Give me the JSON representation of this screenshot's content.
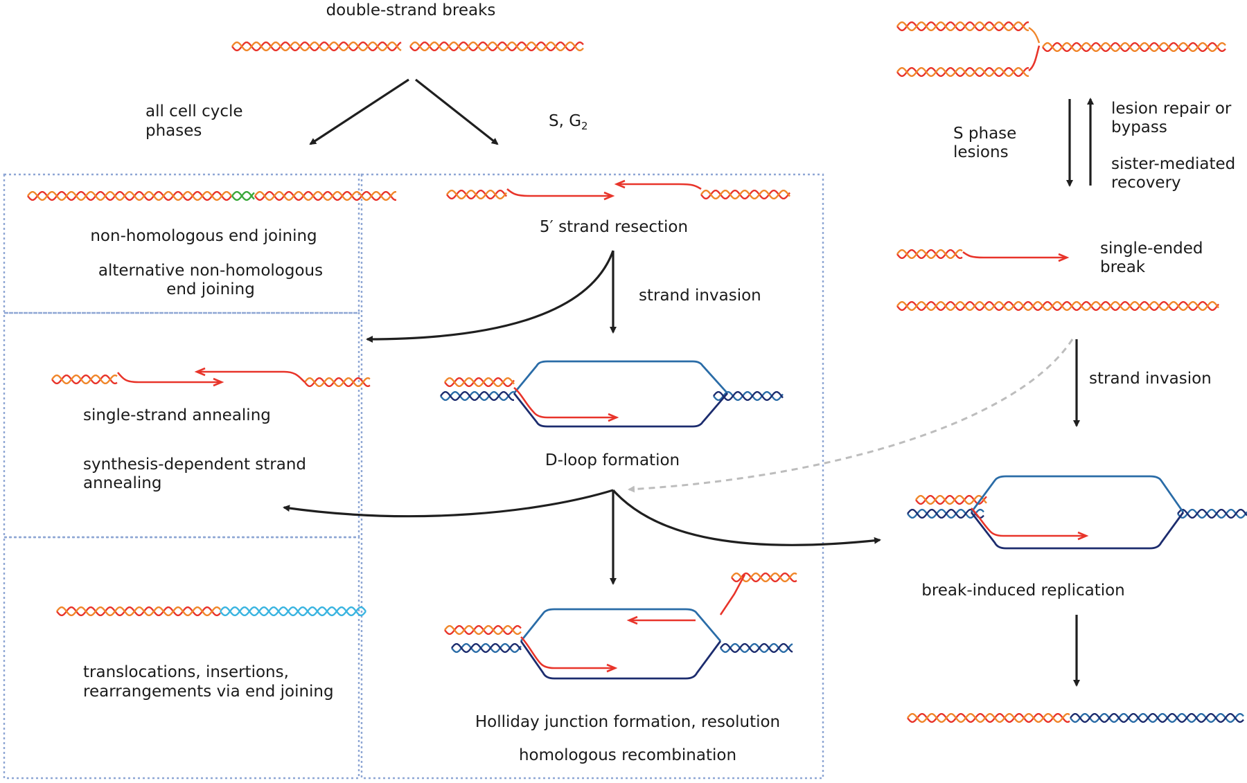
{
  "labels": {
    "double_strand_breaks": "double-strand breaks",
    "all_cell_cycle_1": "all cell cycle",
    "all_cell_cycle_2": "phases",
    "s_g2": "S, G",
    "s_g2_sub": "2",
    "nhej": "non-homologous end joining",
    "alt_nhej_1": "alternative  non-homologous",
    "alt_nhej_2": "end joining",
    "resection": "5′ strand resection",
    "strand_invasion_mid": "strand invasion",
    "ssa": "single-strand annealing",
    "sdsa_1": "synthesis-dependent strand",
    "sdsa_2": "annealing",
    "dloop": "D-loop formation",
    "transloc_1": "translocations, insertions,",
    "transloc_2": "rearrangements via end joining",
    "holliday": "Holliday junction formation, resolution",
    "hr": "homologous recombination",
    "s_phase_1": "S phase",
    "s_phase_2": "lesions",
    "lesion_repair_1": "lesion repair or",
    "lesion_repair_2": "bypass",
    "sister_1": "sister-mediated",
    "sister_2": "recovery",
    "single_ended_1": "single-ended",
    "single_ended_2": "break",
    "strand_invasion_right": "strand invasion",
    "bir": "break-induced replication"
  },
  "colors": {
    "strand_red": "#e8342a",
    "strand_orange": "#f0862a",
    "strand_blue": "#2a6ca7",
    "strand_navy": "#1c2c6e",
    "strand_green": "#3aa83a",
    "strand_cyan": "#3ab4e0",
    "box_border": "#8ea6d4",
    "arrow": "#1f1f1f",
    "arrow_dashed": "#bdbdbd"
  }
}
